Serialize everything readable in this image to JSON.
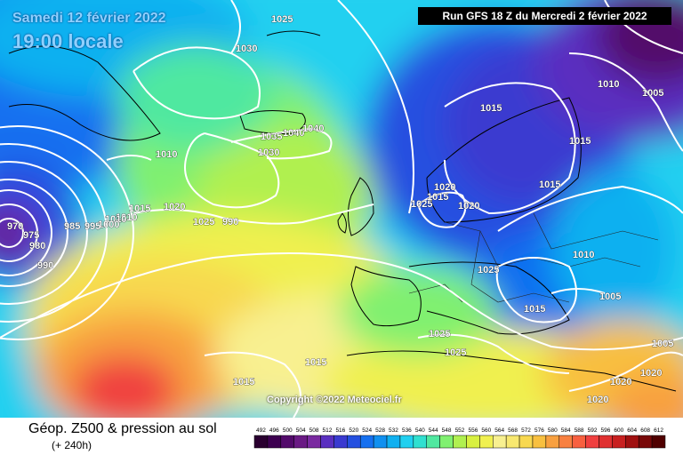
{
  "header": {
    "date": "Samedi 12 février 2022",
    "time": "19:00 locale",
    "run": "Run GFS 18 Z du Mercredi 2 février 2022"
  },
  "copyright": "Copyright ©2022 Meteociel.fr",
  "footer": {
    "title": "Géop. Z500 & pression au sol",
    "subtitle": "(+ 240h)"
  },
  "legend": {
    "values": [
      "492",
      "496",
      "500",
      "504",
      "508",
      "512",
      "516",
      "520",
      "524",
      "528",
      "532",
      "536",
      "540",
      "544",
      "548",
      "552",
      "556",
      "560",
      "564",
      "568",
      "572",
      "576",
      "580",
      "584",
      "588",
      "592",
      "596",
      "600",
      "604",
      "608",
      "612"
    ],
    "colors": [
      "#2a0030",
      "#3d0050",
      "#520a6a",
      "#6a1a84",
      "#7a2aa0",
      "#5a2fc0",
      "#3a3ad0",
      "#2550e0",
      "#1570f0",
      "#1090f0",
      "#10b0f0",
      "#20d0f0",
      "#30e0d0",
      "#50e8a0",
      "#80f070",
      "#b0f050",
      "#d8f040",
      "#f0f050",
      "#f8f090",
      "#f8e870",
      "#f8d850",
      "#f8c040",
      "#f8a040",
      "#f88040",
      "#f86040",
      "#f04040",
      "#e03030",
      "#c82020",
      "#a01010",
      "#780808",
      "#500000"
    ]
  },
  "isobar_labels": [
    "1025",
    "1030",
    "1035",
    "1040",
    "1040",
    "1030",
    "1010",
    "1015",
    "1020",
    "1010",
    "1010",
    "1000",
    "995",
    "990",
    "985",
    "975",
    "970",
    "980",
    "990",
    "1025",
    "1015",
    "1010",
    "1015",
    "1020",
    "1015",
    "1025",
    "1020",
    "1015",
    "1005",
    "1015",
    "1010",
    "1005",
    "1005",
    "1025",
    "1025",
    "1025",
    "1015",
    "1015",
    "1020",
    "1020",
    "1020",
    "1025"
  ]
}
